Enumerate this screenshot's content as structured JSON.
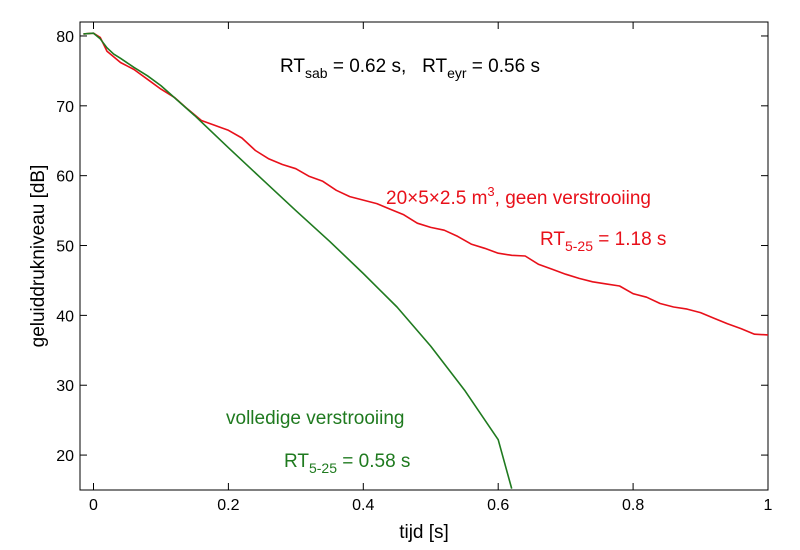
{
  "chart_data": {
    "type": "line",
    "xlabel": "tijd [s]",
    "ylabel": "geluiddrukniveau  [dB]",
    "xlim": [
      -0.02,
      1.0
    ],
    "ylim": [
      15,
      82
    ],
    "xticks": [
      "0",
      "0.2",
      "0.4",
      "0.6",
      "0.8",
      "1"
    ],
    "yticks": [
      "20",
      "30",
      "40",
      "50",
      "60",
      "70",
      "80"
    ],
    "grid": false,
    "colors": {
      "red": "#e8101a",
      "green": "#1f7a1f"
    },
    "annotations": {
      "rt_top": {
        "rt1": "RT",
        "rt1_sub": "sab",
        "rt1_val": " = 0.62 s,   ",
        "rt2": "RT",
        "rt2_sub": "eyr",
        "rt2_val": " = 0.56 s"
      },
      "room": {
        "main": "20×5×2.5 m",
        "sup": "3",
        "rest": ", geen verstrooiing"
      },
      "rt_red": {
        "rt": "RT",
        "sub": "5-25",
        "val": " = 1.18 s"
      },
      "green_label": "volledige verstrooiing",
      "rt_green": {
        "rt": "RT",
        "sub": "5-25",
        "val": " = 0.58 s"
      }
    },
    "series": [
      {
        "color": "red",
        "x": [
          -0.015,
          0.0,
          0.01,
          0.02,
          0.04,
          0.06,
          0.08,
          0.1,
          0.12,
          0.14,
          0.16,
          0.18,
          0.2,
          0.22,
          0.24,
          0.26,
          0.28,
          0.3,
          0.32,
          0.34,
          0.36,
          0.38,
          0.4,
          0.42,
          0.44,
          0.46,
          0.48,
          0.5,
          0.52,
          0.54,
          0.56,
          0.58,
          0.6,
          0.62,
          0.64,
          0.66,
          0.68,
          0.7,
          0.72,
          0.74,
          0.76,
          0.78,
          0.8,
          0.82,
          0.84,
          0.86,
          0.88,
          0.9,
          0.92,
          0.94,
          0.96,
          0.98,
          1.0
        ],
        "y": [
          80.3,
          80.4,
          79.8,
          77.8,
          76.2,
          75.2,
          73.8,
          72.4,
          71.2,
          69.5,
          67.9,
          67.2,
          66.5,
          65.4,
          63.6,
          62.4,
          61.6,
          61.0,
          59.9,
          59.2,
          57.9,
          57.0,
          56.5,
          56.0,
          55.2,
          54.4,
          53.2,
          52.6,
          52.2,
          51.3,
          50.2,
          49.6,
          48.9,
          48.6,
          48.5,
          47.3,
          46.6,
          45.9,
          45.3,
          44.8,
          44.5,
          44.2,
          43.1,
          42.6,
          41.7,
          41.2,
          40.9,
          40.4,
          39.6,
          38.8,
          38.1,
          37.3,
          37.2
        ]
      },
      {
        "color": "green",
        "x": [
          -0.015,
          0.0,
          0.01,
          0.02,
          0.03,
          0.04,
          0.06,
          0.08,
          0.1,
          0.15,
          0.2,
          0.25,
          0.3,
          0.35,
          0.4,
          0.45,
          0.5,
          0.55,
          0.6,
          0.62
        ],
        "y": [
          80.3,
          80.4,
          79.6,
          78.3,
          77.4,
          76.8,
          75.5,
          74.3,
          72.9,
          68.6,
          64.0,
          59.5,
          55.0,
          50.6,
          46.0,
          41.2,
          35.6,
          29.3,
          22.2,
          15.2
        ]
      }
    ]
  }
}
